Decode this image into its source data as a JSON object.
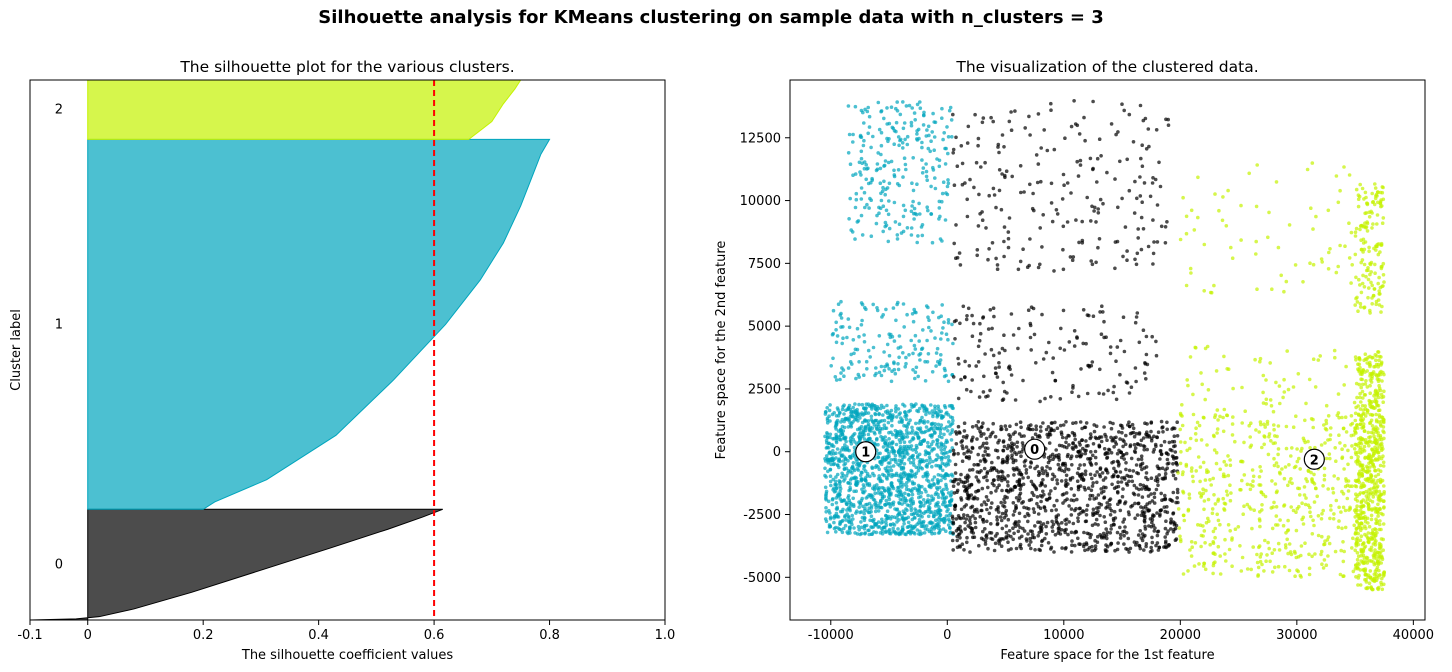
{
  "suptitle": "Silhouette analysis for KMeans clustering on sample data with n_clusters = 3",
  "chart_data": [
    {
      "type": "area",
      "title": "The silhouette plot for the various clusters.",
      "xlabel": "The silhouette coefficient values",
      "ylabel": "Cluster label",
      "xlim": [
        -0.1,
        1.0
      ],
      "xticks": [
        "-0.1",
        "0",
        "0.2",
        "0.4",
        "0.6",
        "0.8",
        "1.0"
      ],
      "xtick_values": [
        -0.1,
        0,
        0.2,
        0.4,
        0.6,
        0.8,
        1.0
      ],
      "yticks": [
        "0",
        "1",
        "2"
      ],
      "average_silhouette": 0.6,
      "average_line_color": "#ff0000",
      "clusters": [
        {
          "label": "0",
          "color": "#000000",
          "band": [
            0.0,
            0.205
          ],
          "profile": [
            [
              0,
              -0.1
            ],
            [
              0.01,
              -0.02
            ],
            [
              0.03,
              0.02
            ],
            [
              0.1,
              0.08
            ],
            [
              0.25,
              0.18
            ],
            [
              0.45,
              0.3
            ],
            [
              0.65,
              0.42
            ],
            [
              0.82,
              0.52
            ],
            [
              0.93,
              0.58
            ],
            [
              1.0,
              0.615
            ]
          ]
        },
        {
          "label": "1",
          "color": "#00a5bd",
          "band": [
            0.205,
            0.89
          ],
          "profile": [
            [
              0,
              0.2
            ],
            [
              0.02,
              0.22
            ],
            [
              0.08,
              0.31
            ],
            [
              0.2,
              0.43
            ],
            [
              0.35,
              0.53
            ],
            [
              0.5,
              0.62
            ],
            [
              0.62,
              0.68
            ],
            [
              0.72,
              0.72
            ],
            [
              0.82,
              0.75
            ],
            [
              0.9,
              0.77
            ],
            [
              0.96,
              0.785
            ],
            [
              1.0,
              0.8
            ]
          ]
        },
        {
          "label": "2",
          "color": "#c4f200",
          "band": [
            0.89,
            1.0
          ],
          "profile": [
            [
              0,
              0.66
            ],
            [
              0.3,
              0.7
            ],
            [
              0.6,
              0.72
            ],
            [
              0.85,
              0.74
            ],
            [
              1.0,
              0.75
            ]
          ]
        }
      ]
    },
    {
      "type": "scatter",
      "title": "The visualization of the clustered data.",
      "xlabel": "Feature space for the 1st feature",
      "ylabel": "Feature space for the 2nd feature",
      "xlim": [
        -13500,
        41000
      ],
      "ylim": [
        -6700,
        14800
      ],
      "xticks": [
        "-10000",
        "0",
        "10000",
        "20000",
        "30000",
        "40000"
      ],
      "xtick_values": [
        -10000,
        0,
        10000,
        20000,
        30000,
        40000
      ],
      "yticks": [
        "-5000",
        "-2500",
        "0",
        "2500",
        "5000",
        "7500",
        "10000",
        "12500"
      ],
      "ytick_values": [
        -5000,
        -2500,
        0,
        2500,
        5000,
        7500,
        10000,
        12500
      ],
      "clusters": [
        {
          "label": "1",
          "color": "#00a5bd",
          "regions": [
            {
              "x": [
                -10500,
                500
              ],
              "y": [
                -3300,
                1900
              ],
              "n": 1500
            },
            {
              "x": [
                -10000,
                500
              ],
              "y": [
                2800,
                6000
              ],
              "n": 170
            },
            {
              "x": [
                -8500,
                400
              ],
              "y": [
                8300,
                14000
              ],
              "n": 260
            }
          ]
        },
        {
          "label": "0",
          "color": "#000000",
          "regions": [
            {
              "x": [
                400,
                19800
              ],
              "y": [
                -4000,
                1200
              ],
              "n": 1300
            },
            {
              "x": [
                400,
                18000
              ],
              "y": [
                2000,
                5900
              ],
              "n": 160
            },
            {
              "x": [
                400,
                19000
              ],
              "y": [
                7200,
                14000
              ],
              "n": 230
            }
          ]
        },
        {
          "label": "2",
          "color": "#c4f200",
          "regions": [
            {
              "x": [
                19800,
                35000
              ],
              "y": [
                -5000,
                1500
              ],
              "n": 500
            },
            {
              "x": [
                35000,
                37500
              ],
              "y": [
                -5500,
                1000
              ],
              "n": 500
            },
            {
              "x": [
                20000,
                35000
              ],
              "y": [
                1500,
                4200
              ],
              "n": 60
            },
            {
              "x": [
                35000,
                37500
              ],
              "y": [
                1000,
                4000
              ],
              "n": 180
            },
            {
              "x": [
                20000,
                35000
              ],
              "y": [
                6300,
                11500
              ],
              "n": 70
            },
            {
              "x": [
                35000,
                37500
              ],
              "y": [
                5500,
                10700
              ],
              "n": 150
            }
          ]
        }
      ],
      "centers": [
        {
          "label": "0",
          "x": 7500,
          "y": 100
        },
        {
          "label": "1",
          "x": -7000,
          "y": 0
        },
        {
          "label": "2",
          "x": 31500,
          "y": -300
        }
      ]
    }
  ]
}
